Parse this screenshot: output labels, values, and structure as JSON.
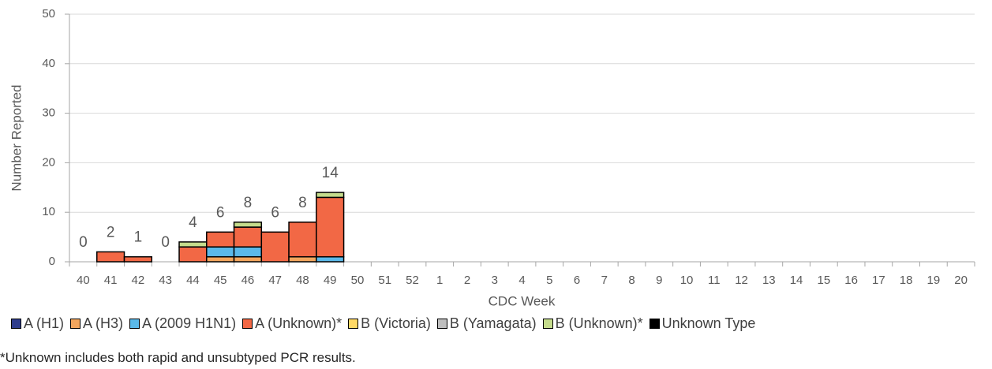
{
  "chart_data": {
    "type": "stacked-bar",
    "x_label": "CDC Week",
    "y_label": "Number Reported",
    "categories": [
      "40",
      "41",
      "42",
      "43",
      "44",
      "45",
      "46",
      "47",
      "48",
      "49",
      "50",
      "51",
      "52",
      "1",
      "2",
      "3",
      "4",
      "5",
      "6",
      "7",
      "8",
      "9",
      "10",
      "11",
      "12",
      "13",
      "14",
      "15",
      "16",
      "17",
      "18",
      "19",
      "20"
    ],
    "ylim": [
      0,
      50
    ],
    "yticks": [
      0,
      10,
      20,
      30,
      40,
      50
    ],
    "grid": true,
    "series": [
      {
        "name": "A (H1)",
        "color": "#2f3d8c",
        "values": [
          0,
          0,
          0,
          0,
          0,
          0,
          0,
          0,
          0,
          0,
          null,
          null,
          null,
          null,
          null,
          null,
          null,
          null,
          null,
          null,
          null,
          null,
          null,
          null,
          null,
          null,
          null,
          null,
          null,
          null,
          null,
          null,
          null
        ]
      },
      {
        "name": "A (H3)",
        "color": "#f2a65e",
        "values": [
          0,
          0,
          0,
          0,
          0,
          1,
          1,
          0,
          1,
          0,
          null,
          null,
          null,
          null,
          null,
          null,
          null,
          null,
          null,
          null,
          null,
          null,
          null,
          null,
          null,
          null,
          null,
          null,
          null,
          null,
          null,
          null,
          null
        ]
      },
      {
        "name": "A (2009 H1N1)",
        "color": "#5bb9e9",
        "values": [
          0,
          0,
          0,
          0,
          0,
          2,
          2,
          0,
          0,
          1,
          null,
          null,
          null,
          null,
          null,
          null,
          null,
          null,
          null,
          null,
          null,
          null,
          null,
          null,
          null,
          null,
          null,
          null,
          null,
          null,
          null,
          null,
          null
        ]
      },
      {
        "name": "A (Unknown)*",
        "color": "#f26845",
        "values": [
          0,
          2,
          1,
          0,
          3,
          3,
          4,
          6,
          7,
          12,
          null,
          null,
          null,
          null,
          null,
          null,
          null,
          null,
          null,
          null,
          null,
          null,
          null,
          null,
          null,
          null,
          null,
          null,
          null,
          null,
          null,
          null,
          null
        ]
      },
      {
        "name": "B (Victoria)",
        "color": "#ffd966",
        "values": [
          0,
          0,
          0,
          0,
          0,
          0,
          0,
          0,
          0,
          0,
          null,
          null,
          null,
          null,
          null,
          null,
          null,
          null,
          null,
          null,
          null,
          null,
          null,
          null,
          null,
          null,
          null,
          null,
          null,
          null,
          null,
          null,
          null
        ]
      },
      {
        "name": "B (Yamagata)",
        "color": "#bfbfbf",
        "values": [
          0,
          0,
          0,
          0,
          0,
          0,
          0,
          0,
          0,
          0,
          null,
          null,
          null,
          null,
          null,
          null,
          null,
          null,
          null,
          null,
          null,
          null,
          null,
          null,
          null,
          null,
          null,
          null,
          null,
          null,
          null,
          null,
          null
        ]
      },
      {
        "name": "B (Unknown)*",
        "color": "#c5dc8c",
        "values": [
          0,
          0,
          0,
          0,
          1,
          0,
          1,
          0,
          0,
          1,
          null,
          null,
          null,
          null,
          null,
          null,
          null,
          null,
          null,
          null,
          null,
          null,
          null,
          null,
          null,
          null,
          null,
          null,
          null,
          null,
          null,
          null,
          null
        ]
      },
      {
        "name": "Unknown Type",
        "color": "#000000",
        "values": [
          0,
          0,
          0,
          0,
          0,
          0,
          0,
          0,
          0,
          0,
          null,
          null,
          null,
          null,
          null,
          null,
          null,
          null,
          null,
          null,
          null,
          null,
          null,
          null,
          null,
          null,
          null,
          null,
          null,
          null,
          null,
          null,
          null
        ]
      }
    ],
    "totals": [
      0,
      2,
      1,
      0,
      4,
      6,
      8,
      6,
      8,
      14,
      null,
      null,
      null,
      null,
      null,
      null,
      null,
      null,
      null,
      null,
      null,
      null,
      null,
      null,
      null,
      null,
      null,
      null,
      null,
      null,
      null,
      null,
      null
    ],
    "footnote": "*Unknown includes both rapid and unsubtyped PCR results."
  }
}
